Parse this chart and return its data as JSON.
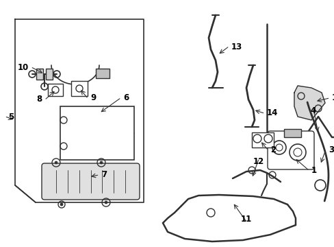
{
  "bg_color": "#ffffff",
  "line_color": "#303030",
  "fig_width": 4.89,
  "fig_height": 3.6,
  "dpi": 100
}
